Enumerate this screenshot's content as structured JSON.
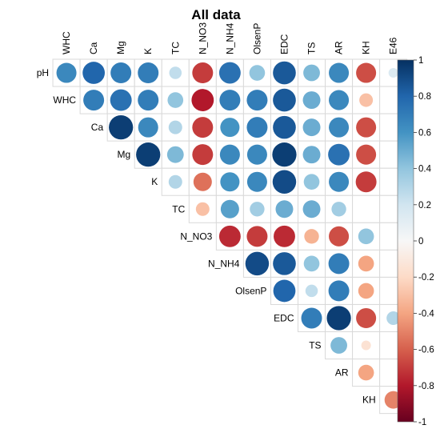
{
  "chart_data": {
    "type": "heatmap",
    "subtype": "correlation-circles-upper",
    "title": "All data",
    "variables": [
      "pH",
      "WHC",
      "Ca",
      "Mg",
      "K",
      "TC",
      "N_NO3",
      "N_NH4",
      "OlsenP",
      "EDC",
      "TS",
      "AR",
      "KH",
      "E46"
    ],
    "rows": [
      "pH",
      "WHC",
      "Ca",
      "Mg",
      "K",
      "TC",
      "N_NO3",
      "N_NH4",
      "OlsenP",
      "EDC",
      "TS",
      "AR",
      "KH"
    ],
    "columns": [
      "WHC",
      "Ca",
      "Mg",
      "K",
      "TC",
      "N_NO3",
      "N_NH4",
      "OlsenP",
      "EDC",
      "TS",
      "AR",
      "KH",
      "E46"
    ],
    "matrix": [
      [
        0.65,
        0.8,
        0.7,
        0.7,
        0.25,
        -0.7,
        0.75,
        0.4,
        0.85,
        0.45,
        0.65,
        -0.65,
        0.15
      ],
      [
        null,
        0.7,
        0.75,
        0.7,
        0.4,
        -0.8,
        0.7,
        0.7,
        0.85,
        0.5,
        0.65,
        -0.3,
        null
      ],
      [
        null,
        null,
        0.95,
        0.65,
        0.3,
        -0.7,
        0.6,
        0.7,
        0.85,
        0.5,
        0.65,
        -0.65,
        null
      ],
      [
        null,
        null,
        null,
        0.95,
        0.45,
        -0.7,
        0.65,
        0.65,
        0.95,
        0.5,
        0.75,
        -0.65,
        null
      ],
      [
        null,
        null,
        null,
        null,
        0.3,
        -0.55,
        0.6,
        0.65,
        0.9,
        0.4,
        0.65,
        -0.7,
        null
      ],
      [
        null,
        null,
        null,
        null,
        null,
        -0.3,
        0.55,
        0.35,
        0.5,
        0.5,
        0.35,
        null,
        null
      ],
      [
        null,
        null,
        null,
        null,
        null,
        null,
        -0.75,
        -0.7,
        -0.75,
        -0.35,
        -0.65,
        0.4,
        null
      ],
      [
        null,
        null,
        null,
        null,
        null,
        null,
        null,
        0.9,
        0.85,
        0.4,
        0.7,
        -0.4,
        null
      ],
      [
        null,
        null,
        null,
        null,
        null,
        null,
        null,
        null,
        0.8,
        0.25,
        0.7,
        -0.4,
        null
      ],
      [
        null,
        null,
        null,
        null,
        null,
        null,
        null,
        null,
        null,
        0.7,
        0.95,
        -0.65,
        0.3
      ],
      [
        null,
        null,
        null,
        null,
        null,
        null,
        null,
        null,
        null,
        null,
        0.45,
        -0.15,
        null
      ],
      [
        null,
        null,
        null,
        null,
        null,
        null,
        null,
        null,
        null,
        null,
        null,
        -0.4,
        null
      ],
      [
        null,
        null,
        null,
        null,
        null,
        null,
        null,
        null,
        null,
        null,
        null,
        null,
        -0.5
      ]
    ],
    "colorbar": {
      "range": [
        -1,
        1
      ],
      "ticks": [
        "1",
        "0.8",
        "0.6",
        "0.4",
        "0.2",
        "0",
        "-0.2",
        "-0.4",
        "-0.6",
        "-0.8",
        "-1"
      ],
      "colors": [
        "#053061",
        "#2166ac",
        "#4393c3",
        "#92c5de",
        "#d1e5f0",
        "#f7f7f7",
        "#fddbc7",
        "#f4a582",
        "#d6604d",
        "#b2182b",
        "#67001f"
      ]
    }
  }
}
